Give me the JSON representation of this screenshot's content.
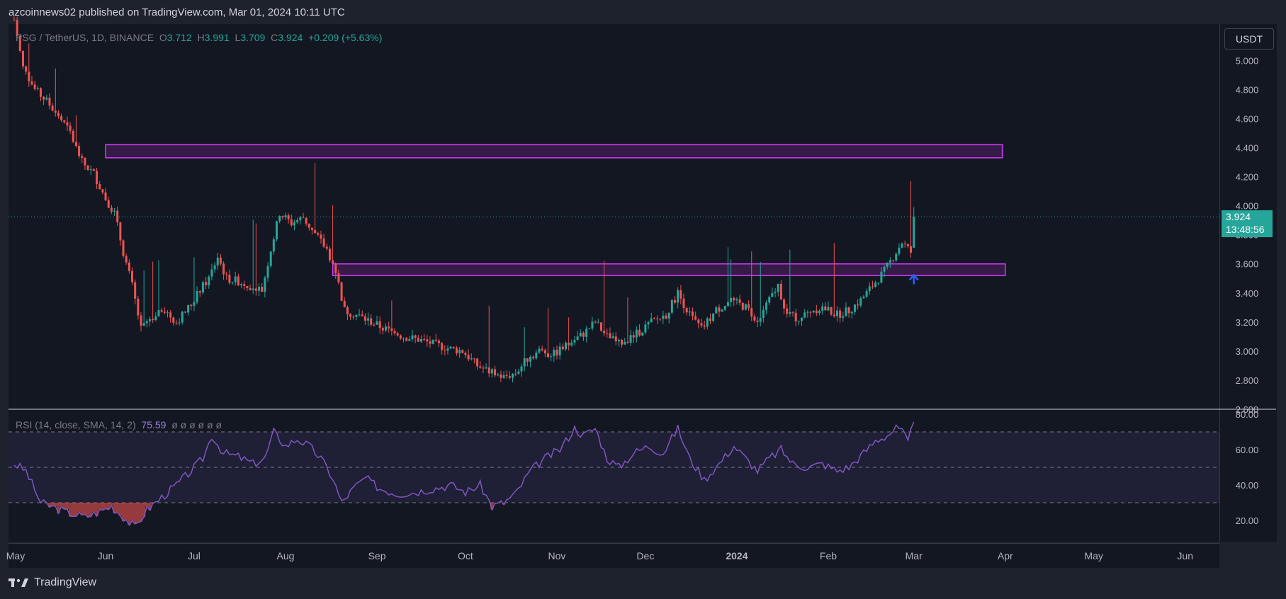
{
  "header": {
    "published": "azcoinnews02 published on TradingView.com, Mar 01, 2024 10:11 UTC"
  },
  "legend": {
    "symbol": "PSG / TetherUS, 1D, BINANCE",
    "o_label": "O",
    "o": "3.712",
    "h_label": "H",
    "h": "3.991",
    "l_label": "L",
    "l": "3.709",
    "c_label": "C",
    "c": "3.924",
    "change": "+0.209 (+5.63%)"
  },
  "rsi_legend": {
    "label": "RSI (14, close, SMA, 14, 2)",
    "value": "75.59",
    "extra": "ø ø ø ø ø ø"
  },
  "axis": {
    "currency": "USDT",
    "last_price": "3.924",
    "countdown": "13:48:56"
  },
  "brand": {
    "name": "TradingView",
    "icon": "tradingview-logo-icon"
  },
  "colors": {
    "up": "#26a69a",
    "down": "#ef5350",
    "zone": "#9c27b0",
    "rsi": "#7e57c2",
    "arrow": "#2962ff"
  },
  "chart_data": [
    {
      "type": "candlestick",
      "title": "",
      "x_ticks": [
        "May",
        "Jun",
        "Jul",
        "Aug",
        "Sep",
        "Oct",
        "Nov",
        "Dec",
        "2024",
        "Feb",
        "Mar",
        "Apr",
        "May",
        "Jun"
      ],
      "y_ticks": [
        "2.600",
        "2.800",
        "3.000",
        "3.200",
        "3.400",
        "3.600",
        "3.800",
        "4.000",
        "4.200",
        "4.400",
        "4.600",
        "4.800",
        "5.000"
      ],
      "ylim": [
        2.6,
        5.25
      ],
      "grid": false,
      "last_close": 3.924,
      "zones": [
        {
          "from": "2023-06-01",
          "to": "2024-03-31",
          "low": 4.33,
          "high": 4.42
        },
        {
          "from": "2023-08-17",
          "to": "2024-04-01",
          "low": 3.52,
          "high": 3.6
        }
      ],
      "annotation_arrow": {
        "x": "2024-03-01",
        "y": 3.46,
        "direction": "up"
      },
      "close_path": [
        [
          "2023-05-01",
          5.28
        ],
        [
          "2023-05-04",
          4.95
        ],
        [
          "2023-05-08",
          4.8
        ],
        [
          "2023-05-12",
          4.72
        ],
        [
          "2023-05-16",
          4.62
        ],
        [
          "2023-05-20",
          4.5
        ],
        [
          "2023-05-24",
          4.3
        ],
        [
          "2023-05-28",
          4.22
        ],
        [
          "2023-06-01",
          4.05
        ],
        [
          "2023-06-04",
          3.95
        ],
        [
          "2023-06-07",
          3.68
        ],
        [
          "2023-06-10",
          3.45
        ],
        [
          "2023-06-13",
          3.15
        ],
        [
          "2023-06-16",
          3.22
        ],
        [
          "2023-06-20",
          3.3
        ],
        [
          "2023-06-25",
          3.2
        ],
        [
          "2023-06-30",
          3.32
        ],
        [
          "2023-07-03",
          3.42
        ],
        [
          "2023-07-06",
          3.5
        ],
        [
          "2023-07-09",
          3.65
        ],
        [
          "2023-07-12",
          3.5
        ],
        [
          "2023-07-16",
          3.48
        ],
        [
          "2023-07-20",
          3.45
        ],
        [
          "2023-07-24",
          3.42
        ],
        [
          "2023-07-27",
          3.7
        ],
        [
          "2023-07-30",
          3.95
        ],
        [
          "2023-08-03",
          3.88
        ],
        [
          "2023-08-07",
          3.92
        ],
        [
          "2023-08-11",
          3.8
        ],
        [
          "2023-08-15",
          3.7
        ],
        [
          "2023-08-18",
          3.55
        ],
        [
          "2023-08-21",
          3.28
        ],
        [
          "2023-08-25",
          3.25
        ],
        [
          "2023-08-30",
          3.2
        ],
        [
          "2023-09-04",
          3.15
        ],
        [
          "2023-09-10",
          3.1
        ],
        [
          "2023-09-15",
          3.08
        ],
        [
          "2023-09-20",
          3.05
        ],
        [
          "2023-09-25",
          3.02
        ],
        [
          "2023-09-30",
          3.0
        ],
        [
          "2023-10-05",
          2.9
        ],
        [
          "2023-10-10",
          2.85
        ],
        [
          "2023-10-14",
          2.82
        ],
        [
          "2023-10-18",
          2.85
        ],
        [
          "2023-10-22",
          2.95
        ],
        [
          "2023-10-26",
          3.0
        ],
        [
          "2023-10-31",
          2.98
        ],
        [
          "2023-11-05",
          3.05
        ],
        [
          "2023-11-10",
          3.12
        ],
        [
          "2023-11-14",
          3.2
        ],
        [
          "2023-11-18",
          3.1
        ],
        [
          "2023-11-22",
          3.05
        ],
        [
          "2023-11-28",
          3.12
        ],
        [
          "2023-12-03",
          3.2
        ],
        [
          "2023-12-08",
          3.25
        ],
        [
          "2023-12-12",
          3.4
        ],
        [
          "2023-12-16",
          3.25
        ],
        [
          "2023-12-20",
          3.15
        ],
        [
          "2023-12-25",
          3.28
        ],
        [
          "2023-12-30",
          3.35
        ],
        [
          "2024-01-04",
          3.3
        ],
        [
          "2024-01-08",
          3.22
        ],
        [
          "2024-01-12",
          3.35
        ],
        [
          "2024-01-15",
          3.45
        ],
        [
          "2024-01-18",
          3.25
        ],
        [
          "2024-01-22",
          3.22
        ],
        [
          "2024-01-26",
          3.28
        ],
        [
          "2024-01-30",
          3.3
        ],
        [
          "2024-02-04",
          3.25
        ],
        [
          "2024-02-08",
          3.28
        ],
        [
          "2024-02-12",
          3.35
        ],
        [
          "2024-02-16",
          3.45
        ],
        [
          "2024-02-20",
          3.55
        ],
        [
          "2024-02-23",
          3.65
        ],
        [
          "2024-02-26",
          3.75
        ],
        [
          "2024-02-29",
          3.68
        ],
        [
          "2024-03-01",
          3.924
        ]
      ]
    },
    {
      "type": "line",
      "title": "",
      "y_ticks": [
        "20.00",
        "40.00",
        "60.00",
        "80.00"
      ],
      "ylim": [
        8,
        82
      ],
      "bands": [
        30,
        50,
        70
      ],
      "series": [
        {
          "name": "",
          "values": [
            [
              "2023-05-01",
              52
            ],
            [
              "2023-05-05",
              48
            ],
            [
              "2023-05-10",
              30
            ],
            [
              "2023-05-15",
              27
            ],
            [
              "2023-05-20",
              24
            ],
            [
              "2023-05-25",
              22
            ],
            [
              "2023-05-30",
              25
            ],
            [
              "2023-06-03",
              28
            ],
            [
              "2023-06-07",
              22
            ],
            [
              "2023-06-11",
              16
            ],
            [
              "2023-06-15",
              26
            ],
            [
              "2023-06-20",
              33
            ],
            [
              "2023-06-25",
              40
            ],
            [
              "2023-06-30",
              48
            ],
            [
              "2023-07-04",
              55
            ],
            [
              "2023-07-07",
              68
            ],
            [
              "2023-07-11",
              58
            ],
            [
              "2023-07-16",
              56
            ],
            [
              "2023-07-21",
              52
            ],
            [
              "2023-07-25",
              55
            ],
            [
              "2023-07-28",
              70
            ],
            [
              "2023-08-01",
              62
            ],
            [
              "2023-08-05",
              66
            ],
            [
              "2023-08-09",
              62
            ],
            [
              "2023-08-13",
              55
            ],
            [
              "2023-08-17",
              44
            ],
            [
              "2023-08-20",
              30
            ],
            [
              "2023-08-24",
              38
            ],
            [
              "2023-08-28",
              44
            ],
            [
              "2023-09-02",
              38
            ],
            [
              "2023-09-08",
              35
            ],
            [
              "2023-09-14",
              36
            ],
            [
              "2023-09-20",
              38
            ],
            [
              "2023-09-26",
              40
            ],
            [
              "2023-10-01",
              36
            ],
            [
              "2023-10-06",
              40
            ],
            [
              "2023-10-10",
              28
            ],
            [
              "2023-10-14",
              30
            ],
            [
              "2023-10-18",
              35
            ],
            [
              "2023-10-23",
              48
            ],
            [
              "2023-10-28",
              55
            ],
            [
              "2023-11-02",
              60
            ],
            [
              "2023-11-07",
              72
            ],
            [
              "2023-11-10",
              68
            ],
            [
              "2023-11-14",
              72
            ],
            [
              "2023-11-18",
              55
            ],
            [
              "2023-11-22",
              50
            ],
            [
              "2023-11-27",
              58
            ],
            [
              "2023-12-02",
              62
            ],
            [
              "2023-12-07",
              58
            ],
            [
              "2023-12-12",
              72
            ],
            [
              "2023-12-16",
              55
            ],
            [
              "2023-12-21",
              43
            ],
            [
              "2023-12-26",
              52
            ],
            [
              "2023-12-31",
              62
            ],
            [
              "2024-01-04",
              55
            ],
            [
              "2024-01-08",
              48
            ],
            [
              "2024-01-12",
              55
            ],
            [
              "2024-01-16",
              60
            ],
            [
              "2024-01-20",
              52
            ],
            [
              "2024-01-25",
              50
            ],
            [
              "2024-01-30",
              52
            ],
            [
              "2024-02-04",
              48
            ],
            [
              "2024-02-08",
              50
            ],
            [
              "2024-02-13",
              58
            ],
            [
              "2024-02-17",
              65
            ],
            [
              "2024-02-21",
              68
            ],
            [
              "2024-02-24",
              72
            ],
            [
              "2024-02-26",
              70
            ],
            [
              "2024-02-28",
              64
            ],
            [
              "2024-03-01",
              75.59
            ]
          ]
        }
      ]
    }
  ]
}
